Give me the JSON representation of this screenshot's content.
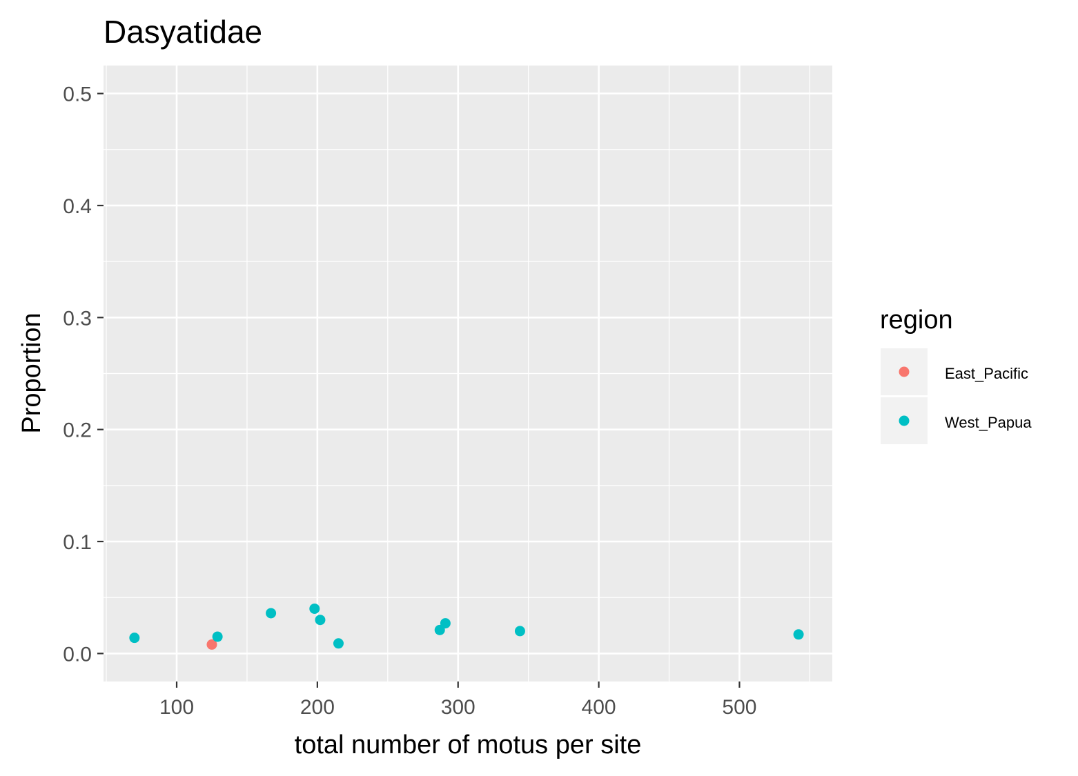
{
  "chart_data": {
    "type": "scatter",
    "title": "Dasyatidae",
    "xlabel": "total number of motus per site",
    "ylabel": "Proportion",
    "xlim": [
      48,
      566
    ],
    "ylim": [
      -0.025,
      0.525
    ],
    "x_ticks": [
      100,
      200,
      300,
      400,
      500
    ],
    "x_tick_labels": [
      "100",
      "200",
      "300",
      "400",
      "500"
    ],
    "y_ticks": [
      0.0,
      0.1,
      0.2,
      0.3,
      0.4,
      0.5
    ],
    "y_tick_labels": [
      "0.0",
      "0.1",
      "0.2",
      "0.3",
      "0.4",
      "0.5"
    ],
    "grid": true,
    "background": "#ebebeb",
    "legend": {
      "title": "region",
      "position": "right",
      "entries": [
        {
          "label": "East_Pacific",
          "color": "#f8766d"
        },
        {
          "label": "West_Papua",
          "color": "#00bfc4"
        }
      ]
    },
    "series": [
      {
        "name": "East_Pacific",
        "color": "#f8766d",
        "points": [
          {
            "x": 125,
            "y": 0.008
          }
        ]
      },
      {
        "name": "West_Papua",
        "color": "#00bfc4",
        "points": [
          {
            "x": 70,
            "y": 0.014
          },
          {
            "x": 129,
            "y": 0.015
          },
          {
            "x": 167,
            "y": 0.036
          },
          {
            "x": 198,
            "y": 0.04
          },
          {
            "x": 202,
            "y": 0.03
          },
          {
            "x": 215,
            "y": 0.009
          },
          {
            "x": 287,
            "y": 0.021
          },
          {
            "x": 291,
            "y": 0.027
          },
          {
            "x": 344,
            "y": 0.02
          },
          {
            "x": 542,
            "y": 0.017
          }
        ]
      }
    ]
  }
}
